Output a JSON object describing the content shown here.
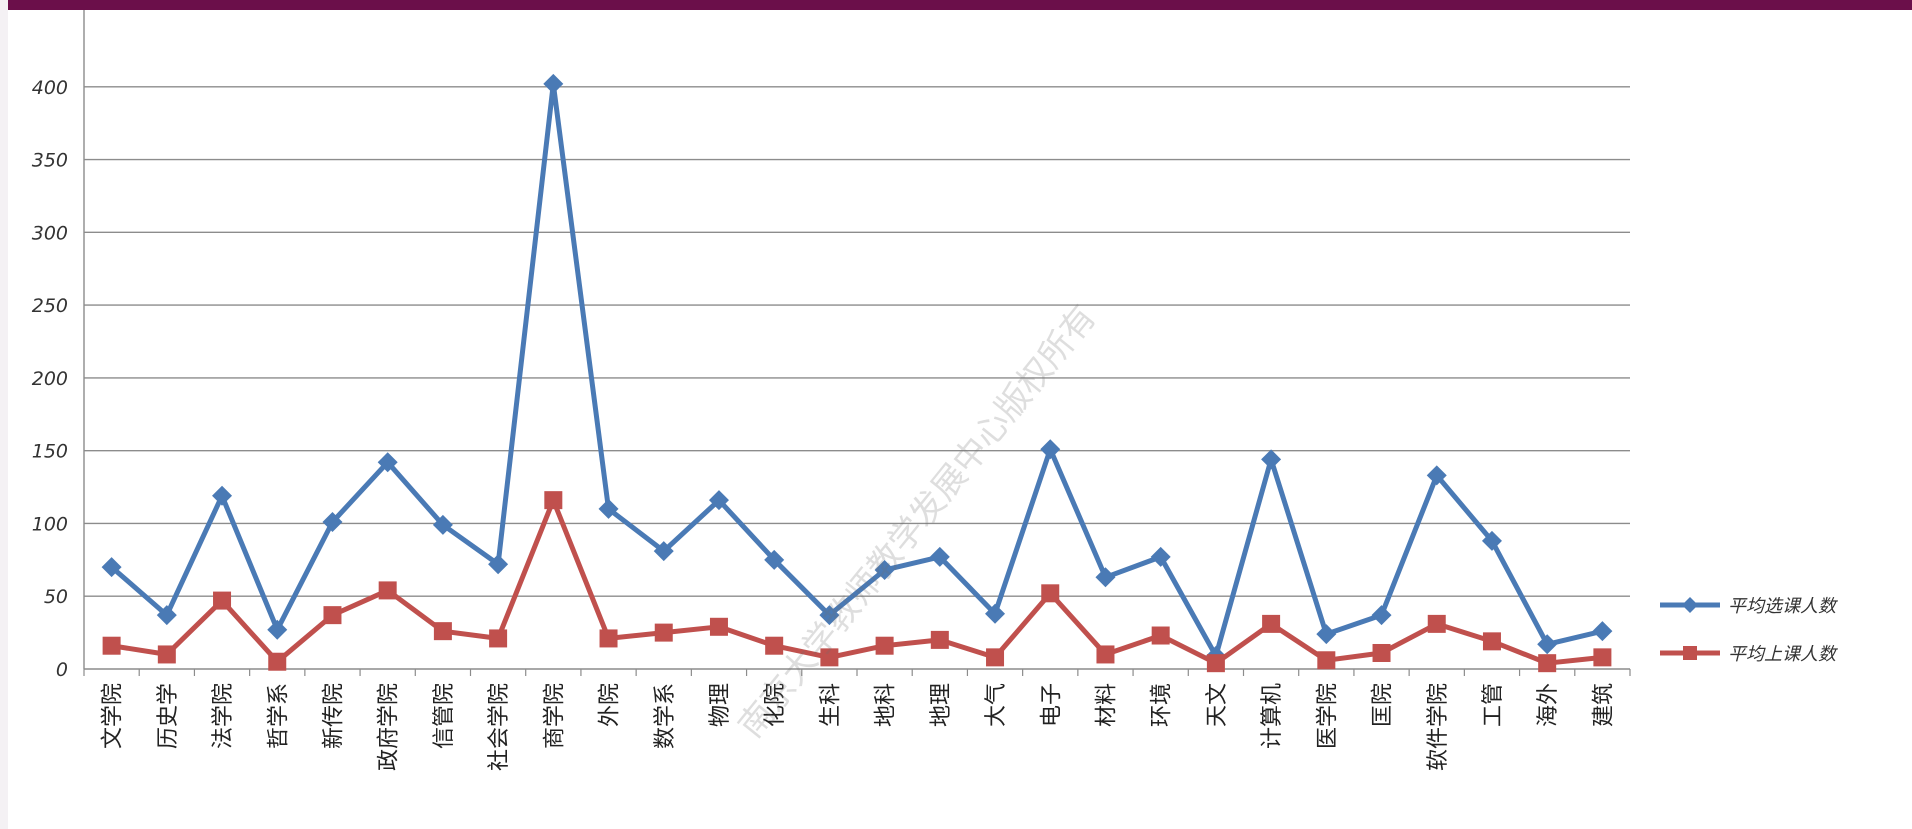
{
  "page": {
    "watermark": "南京大学教师教学发展中心版权所有",
    "top_bar_color": "#6b0f4a"
  },
  "chart_data": {
    "type": "line",
    "title": "",
    "xlabel": "",
    "ylabel": "",
    "ylim": [
      0,
      450
    ],
    "yticks": [
      0,
      50,
      100,
      150,
      200,
      250,
      300,
      350,
      400
    ],
    "grid": true,
    "legend_position": "right",
    "categories": [
      "文学院",
      "历史学",
      "法学院",
      "哲学系",
      "新传院",
      "政府学院",
      "信管院",
      "社会学院",
      "商学院",
      "外院",
      "数学系",
      "物理",
      "化院",
      "生科",
      "地科",
      "地理",
      "大气",
      "电子",
      "材料",
      "环境",
      "天文",
      "计算机",
      "医学院",
      "匡院",
      "软件学院",
      "工管",
      "海外",
      "建筑"
    ],
    "series": [
      {
        "name": "平均选课人数",
        "color": "#4a7ab5",
        "marker": "diamond",
        "values": [
          70,
          37,
          119,
          27,
          101,
          142,
          99,
          72,
          402,
          110,
          81,
          116,
          75,
          37,
          68,
          77,
          38,
          151,
          63,
          77,
          9,
          144,
          24,
          37,
          133,
          88,
          17,
          26
        ]
      },
      {
        "name": "平均上课人数",
        "color": "#c0504d",
        "marker": "square",
        "values": [
          16,
          10,
          47,
          5,
          37,
          54,
          26,
          21,
          116,
          21,
          25,
          29,
          16,
          8,
          16,
          20,
          8,
          52,
          10,
          23,
          4,
          31,
          6,
          11,
          31,
          19,
          4,
          8
        ]
      }
    ]
  }
}
